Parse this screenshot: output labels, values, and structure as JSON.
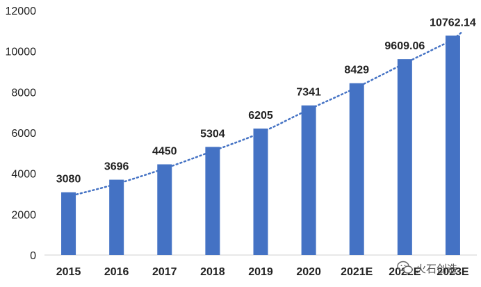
{
  "chart_data": {
    "type": "bar",
    "categories": [
      "2015",
      "2016",
      "2017",
      "2018",
      "2019",
      "2020",
      "2021E",
      "2022E",
      "2023E"
    ],
    "values": [
      3080,
      3696,
      4450,
      5304,
      6205,
      7341,
      8429,
      9609.06,
      10762.14
    ],
    "data_labels": [
      "3080",
      "3696",
      "4450",
      "5304",
      "6205",
      "7341",
      "8429",
      "9609.06",
      "10762.14"
    ],
    "title": "",
    "xlabel": "",
    "ylabel": "",
    "ylim": [
      0,
      12000
    ],
    "yticks": [
      0,
      2000,
      4000,
      6000,
      8000,
      10000,
      12000
    ],
    "ytick_labels": [
      "0",
      "2000",
      "4000",
      "6000",
      "8000",
      "10000",
      "12000"
    ],
    "grid": false,
    "legend": "none",
    "trendline": {
      "type": "polynomial",
      "style": "dotted",
      "color": "#4472c4"
    },
    "bar_color": "#4472c4"
  },
  "watermark": {
    "text": "火石创造",
    "icon": "wechat-icon"
  }
}
